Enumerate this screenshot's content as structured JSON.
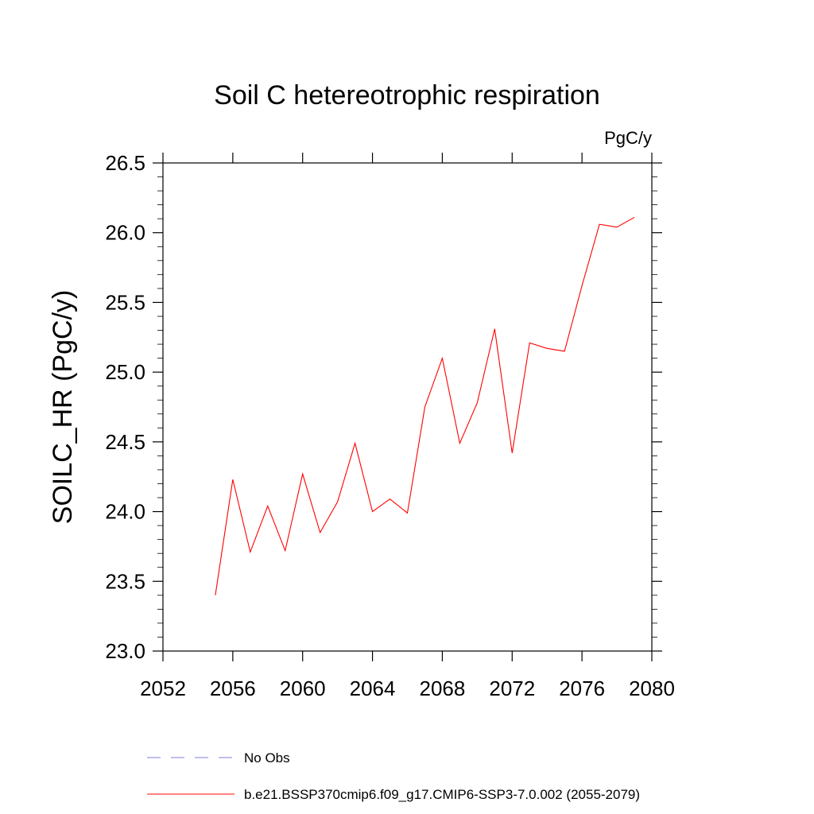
{
  "chart_data": {
    "type": "line",
    "title": "Soil C hetereotrophic respiration",
    "units_label": "PgC/y",
    "ylabel": "SOILC_HR  (PgC/y)",
    "xlabel": "",
    "xlim": [
      2052,
      2080
    ],
    "ylim": [
      23.0,
      26.5
    ],
    "x_ticks": [
      2052,
      2056,
      2060,
      2064,
      2068,
      2072,
      2076,
      2080
    ],
    "y_ticks": [
      "23.0",
      "23.5",
      "24.0",
      "24.5",
      "25.0",
      "25.5",
      "26.0",
      "26.5"
    ],
    "series": [
      {
        "name": "b.e21.BSSP370cmip6.f09_g17.CMIP6-SSP3-7.0.002 (2055-2079)",
        "color": "#ff0000",
        "x": [
          2055,
          2056,
          2057,
          2058,
          2059,
          2060,
          2061,
          2062,
          2063,
          2064,
          2065,
          2066,
          2067,
          2068,
          2069,
          2070,
          2071,
          2072,
          2073,
          2074,
          2075,
          2076,
          2077,
          2078,
          2079
        ],
        "y": [
          23.4,
          24.23,
          23.71,
          24.04,
          23.72,
          24.27,
          23.85,
          24.07,
          24.49,
          24.0,
          24.09,
          23.99,
          24.75,
          25.1,
          24.49,
          24.78,
          25.31,
          24.42,
          25.21,
          25.17,
          25.15,
          25.62,
          26.06,
          26.04,
          26.11
        ]
      }
    ],
    "legend": {
      "placement": "bottom",
      "entries": [
        {
          "label": "No Obs",
          "color": "#7b7bd6",
          "style": "dashed"
        },
        {
          "label": "b.e21.BSSP370cmip6.f09_g17.CMIP6-SSP3-7.0.002 (2055-2079)",
          "color": "#ff0000",
          "style": "solid"
        }
      ]
    },
    "grid": false
  }
}
